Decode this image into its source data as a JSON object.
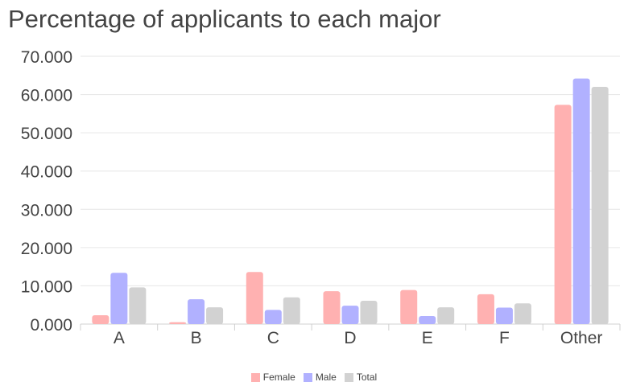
{
  "chart_data": {
    "type": "bar",
    "title": "Percentage of applicants to each major",
    "xlabel": "",
    "ylabel": "",
    "categories": [
      "A",
      "B",
      "C",
      "D",
      "E",
      "F",
      "Other"
    ],
    "ylim": [
      0,
      70
    ],
    "yticks": [
      "0.000",
      "10.000",
      "20.000",
      "30.000",
      "40.000",
      "50.000",
      "60.000",
      "70.000"
    ],
    "grid": true,
    "legend_position": "bottom",
    "series": [
      {
        "name": "Female",
        "color": "#ffb1b1",
        "values": [
          2.3,
          0.5,
          13.6,
          8.6,
          8.9,
          7.8,
          57.3
        ]
      },
      {
        "name": "Male",
        "color": "#b1b1ff",
        "values": [
          13.4,
          6.5,
          3.7,
          4.8,
          2.1,
          4.3,
          64.2
        ]
      },
      {
        "name": "Total",
        "color": "#d2d2d2",
        "values": [
          9.6,
          4.4,
          7.0,
          6.1,
          4.4,
          5.4,
          62.0
        ]
      }
    ]
  }
}
